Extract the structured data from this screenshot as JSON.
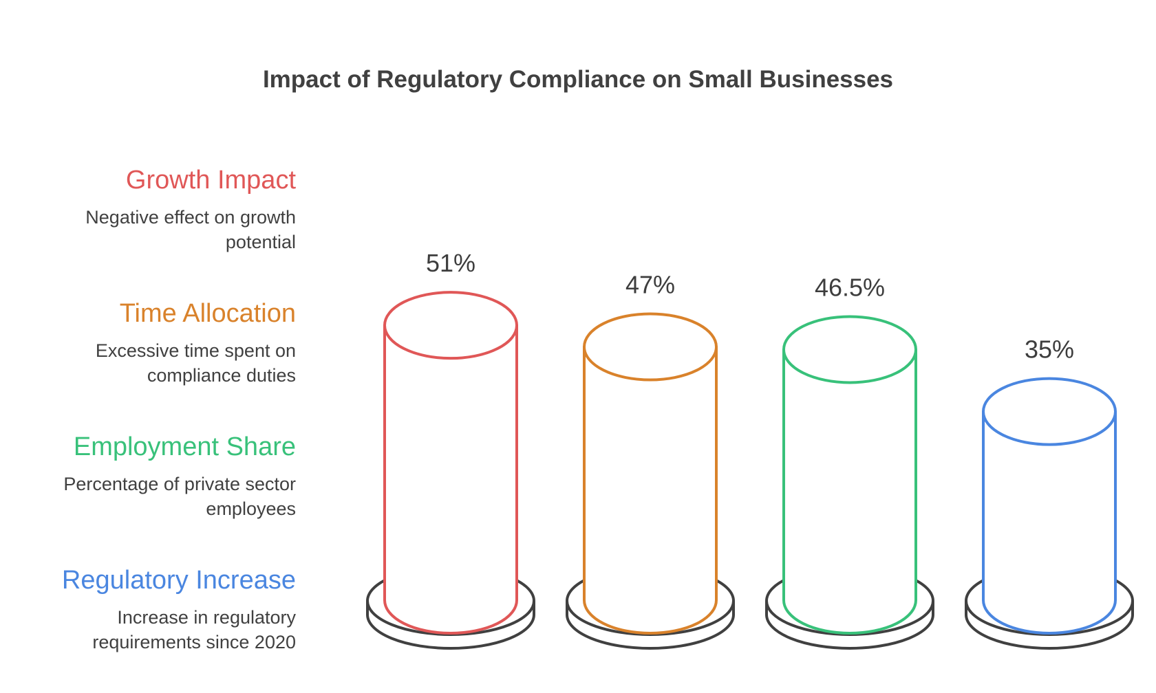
{
  "chart_data": {
    "type": "bar",
    "title": "Impact of Regulatory Compliance on Small Businesses",
    "categories": [
      "Growth Impact",
      "Time Allocation",
      "Employment Share",
      "Regulatory Increase"
    ],
    "values": [
      51,
      47,
      46.5,
      35
    ],
    "value_labels": [
      "51%",
      "47%",
      "46.5%",
      "35%"
    ],
    "descriptions": [
      "Negative effect on growth potential",
      "Excessive time spent on compliance duties",
      "Percentage of private sector employees",
      "Increase in regulatory requirements since 2020"
    ],
    "colors": [
      "#e05757",
      "#d9822b",
      "#38c17a",
      "#4a86e0"
    ],
    "legend_position": "left",
    "grid": false,
    "style": "3d-cylinder"
  }
}
